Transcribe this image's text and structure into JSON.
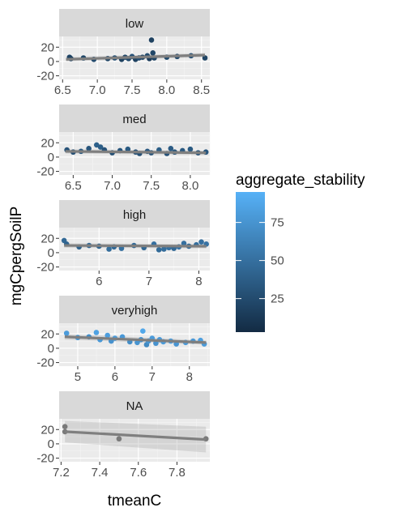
{
  "chart_data": {
    "type": "scatter",
    "xlabel": "tmeanC",
    "ylabel": "mgCpergSoilP",
    "facet_layout": "vertical",
    "y_ticks": [
      20,
      0,
      -20
    ],
    "ylim": [
      -25,
      35
    ],
    "grid": true,
    "smooth": "linear regression line with confidence band",
    "colorbar": {
      "title": "aggregate_stability",
      "ticks": [
        75,
        50,
        25
      ],
      "range": [
        3,
        95
      ],
      "low_color": "#132B43",
      "high_color": "#56B1F7",
      "placement": "right"
    },
    "panels": [
      {
        "strip": "low",
        "xlim": [
          6.45,
          8.62
        ],
        "x_ticks": [
          "6.5",
          "7.0",
          "7.5",
          "8.0",
          "8.5"
        ],
        "x_tick_values": [
          6.5,
          7.0,
          7.5,
          8.0,
          8.5
        ],
        "fit": {
          "x": [
            6.55,
            8.55
          ],
          "y": [
            3,
            9
          ]
        },
        "band": {
          "upper": [
            6,
            12
          ],
          "lower": [
            0,
            6
          ]
        },
        "points": [
          {
            "x": 6.6,
            "y": 6,
            "c": 20
          },
          {
            "x": 6.62,
            "y": 4,
            "c": 18
          },
          {
            "x": 6.8,
            "y": 5,
            "c": 22
          },
          {
            "x": 6.95,
            "y": 3,
            "c": 25
          },
          {
            "x": 7.15,
            "y": 4,
            "c": 20
          },
          {
            "x": 7.25,
            "y": 5,
            "c": 28
          },
          {
            "x": 7.35,
            "y": 3,
            "c": 18
          },
          {
            "x": 7.4,
            "y": 6,
            "c": 22
          },
          {
            "x": 7.45,
            "y": 4,
            "c": 24
          },
          {
            "x": 7.5,
            "y": 7,
            "c": 30
          },
          {
            "x": 7.55,
            "y": 3,
            "c": 18
          },
          {
            "x": 7.6,
            "y": 5,
            "c": 26
          },
          {
            "x": 7.65,
            "y": 6,
            "c": 20
          },
          {
            "x": 7.72,
            "y": 8,
            "c": 25
          },
          {
            "x": 7.75,
            "y": 4,
            "c": 15
          },
          {
            "x": 7.78,
            "y": 30,
            "c": 18
          },
          {
            "x": 7.8,
            "y": 12,
            "c": 22
          },
          {
            "x": 7.82,
            "y": 5,
            "c": 20
          },
          {
            "x": 8.0,
            "y": 6,
            "c": 24
          },
          {
            "x": 8.15,
            "y": 7,
            "c": 22
          },
          {
            "x": 8.35,
            "y": 8,
            "c": 28
          },
          {
            "x": 8.55,
            "y": 5,
            "c": 20
          }
        ]
      },
      {
        "strip": "med",
        "xlim": [
          6.32,
          8.25
        ],
        "x_ticks": [
          "6.5",
          "7.0",
          "7.5",
          "8.0"
        ],
        "x_tick_values": [
          6.5,
          7.0,
          7.5,
          8.0
        ],
        "fit": {
          "x": [
            6.4,
            8.2
          ],
          "y": [
            8,
            6
          ]
        },
        "band": {
          "upper": [
            11,
            9
          ],
          "lower": [
            5,
            3
          ]
        },
        "points": [
          {
            "x": 6.42,
            "y": 10,
            "c": 30
          },
          {
            "x": 6.5,
            "y": 7,
            "c": 28
          },
          {
            "x": 6.6,
            "y": 8,
            "c": 35
          },
          {
            "x": 6.7,
            "y": 12,
            "c": 32
          },
          {
            "x": 6.8,
            "y": 17,
            "c": 40
          },
          {
            "x": 6.85,
            "y": 14,
            "c": 38
          },
          {
            "x": 6.9,
            "y": 10,
            "c": 30
          },
          {
            "x": 7.0,
            "y": 6,
            "c": 28
          },
          {
            "x": 7.1,
            "y": 9,
            "c": 32
          },
          {
            "x": 7.2,
            "y": 11,
            "c": 35
          },
          {
            "x": 7.3,
            "y": 7,
            "c": 30
          },
          {
            "x": 7.35,
            "y": 5,
            "c": 28
          },
          {
            "x": 7.45,
            "y": 8,
            "c": 34
          },
          {
            "x": 7.5,
            "y": 6,
            "c": 30
          },
          {
            "x": 7.6,
            "y": 10,
            "c": 38
          },
          {
            "x": 7.7,
            "y": 5,
            "c": 30
          },
          {
            "x": 7.75,
            "y": 12,
            "c": 36
          },
          {
            "x": 7.8,
            "y": 7,
            "c": 32
          },
          {
            "x": 7.9,
            "y": 9,
            "c": 34
          },
          {
            "x": 8.0,
            "y": 11,
            "c": 35
          },
          {
            "x": 8.1,
            "y": 6,
            "c": 30
          },
          {
            "x": 8.2,
            "y": 7,
            "c": 32
          }
        ]
      },
      {
        "strip": "high",
        "xlim": [
          5.2,
          8.22
        ],
        "x_ticks": [
          "6",
          "7",
          "8"
        ],
        "x_tick_values": [
          6,
          7,
          8
        ],
        "fit": {
          "x": [
            5.3,
            8.15
          ],
          "y": [
            10,
            9
          ]
        },
        "band": {
          "upper": [
            13,
            12
          ],
          "lower": [
            7,
            6
          ]
        },
        "points": [
          {
            "x": 5.3,
            "y": 17,
            "c": 45
          },
          {
            "x": 5.35,
            "y": 12,
            "c": 42
          },
          {
            "x": 5.6,
            "y": 8,
            "c": 40
          },
          {
            "x": 5.8,
            "y": 10,
            "c": 44
          },
          {
            "x": 6.0,
            "y": 9,
            "c": 42
          },
          {
            "x": 6.2,
            "y": 5,
            "c": 48
          },
          {
            "x": 6.3,
            "y": 8,
            "c": 45
          },
          {
            "x": 6.45,
            "y": 6,
            "c": 50
          },
          {
            "x": 6.7,
            "y": 10,
            "c": 46
          },
          {
            "x": 6.9,
            "y": 7,
            "c": 44
          },
          {
            "x": 7.1,
            "y": 12,
            "c": 50
          },
          {
            "x": 7.2,
            "y": 4,
            "c": 46
          },
          {
            "x": 7.3,
            "y": 5,
            "c": 48
          },
          {
            "x": 7.4,
            "y": 7,
            "c": 50
          },
          {
            "x": 7.5,
            "y": 6,
            "c": 45
          },
          {
            "x": 7.6,
            "y": 8,
            "c": 52
          },
          {
            "x": 7.7,
            "y": 13,
            "c": 50
          },
          {
            "x": 7.8,
            "y": 9,
            "c": 46
          },
          {
            "x": 7.95,
            "y": 11,
            "c": 48
          },
          {
            "x": 8.05,
            "y": 15,
            "c": 50
          },
          {
            "x": 8.15,
            "y": 12,
            "c": 52
          }
        ]
      },
      {
        "strip": "veryhigh",
        "xlim": [
          4.5,
          8.55
        ],
        "x_ticks": [
          "5",
          "6",
          "7",
          "8"
        ],
        "x_tick_values": [
          5,
          6,
          7,
          8
        ],
        "fit": {
          "x": [
            4.65,
            8.45
          ],
          "y": [
            16,
            8
          ]
        },
        "band": {
          "upper": [
            20,
            11
          ],
          "lower": [
            12,
            5
          ]
        },
        "points": [
          {
            "x": 4.7,
            "y": 21,
            "c": 80
          },
          {
            "x": 5.0,
            "y": 15,
            "c": 75
          },
          {
            "x": 5.3,
            "y": 16,
            "c": 70
          },
          {
            "x": 5.5,
            "y": 22,
            "c": 85
          },
          {
            "x": 5.6,
            "y": 12,
            "c": 78
          },
          {
            "x": 5.8,
            "y": 18,
            "c": 82
          },
          {
            "x": 5.9,
            "y": 10,
            "c": 74
          },
          {
            "x": 6.0,
            "y": 14,
            "c": 80
          },
          {
            "x": 6.2,
            "y": 16,
            "c": 78
          },
          {
            "x": 6.4,
            "y": 9,
            "c": 70
          },
          {
            "x": 6.6,
            "y": 8,
            "c": 75
          },
          {
            "x": 6.7,
            "y": 12,
            "c": 72
          },
          {
            "x": 6.75,
            "y": 24,
            "c": 88
          },
          {
            "x": 6.85,
            "y": 5,
            "c": 68
          },
          {
            "x": 6.9,
            "y": 10,
            "c": 76
          },
          {
            "x": 7.0,
            "y": 14,
            "c": 80
          },
          {
            "x": 7.1,
            "y": 7,
            "c": 74
          },
          {
            "x": 7.2,
            "y": 12,
            "c": 78
          },
          {
            "x": 7.3,
            "y": 9,
            "c": 80
          },
          {
            "x": 7.5,
            "y": 10,
            "c": 82
          },
          {
            "x": 7.65,
            "y": 6,
            "c": 76
          },
          {
            "x": 7.9,
            "y": 8,
            "c": 80
          },
          {
            "x": 8.1,
            "y": 10,
            "c": 78
          },
          {
            "x": 8.3,
            "y": 11,
            "c": 82
          },
          {
            "x": 8.4,
            "y": 6,
            "c": 80
          }
        ]
      },
      {
        "strip": "NA",
        "xlim": [
          7.19,
          7.97
        ],
        "x_ticks": [
          "7.2",
          "7.4",
          "7.6",
          "7.8"
        ],
        "x_tick_values": [
          7.2,
          7.4,
          7.6,
          7.8
        ],
        "fit": {
          "x": [
            7.22,
            7.95
          ],
          "y": [
            17,
            6
          ]
        },
        "band": {
          "upper": [
            32,
            24
          ],
          "lower": [
            2,
            -12
          ]
        },
        "point_color": "#7a7a7a",
        "points": [
          {
            "x": 7.22,
            "y": 24
          },
          {
            "x": 7.22,
            "y": 17
          },
          {
            "x": 7.5,
            "y": 7
          },
          {
            "x": 7.95,
            "y": 7
          }
        ]
      }
    ]
  }
}
